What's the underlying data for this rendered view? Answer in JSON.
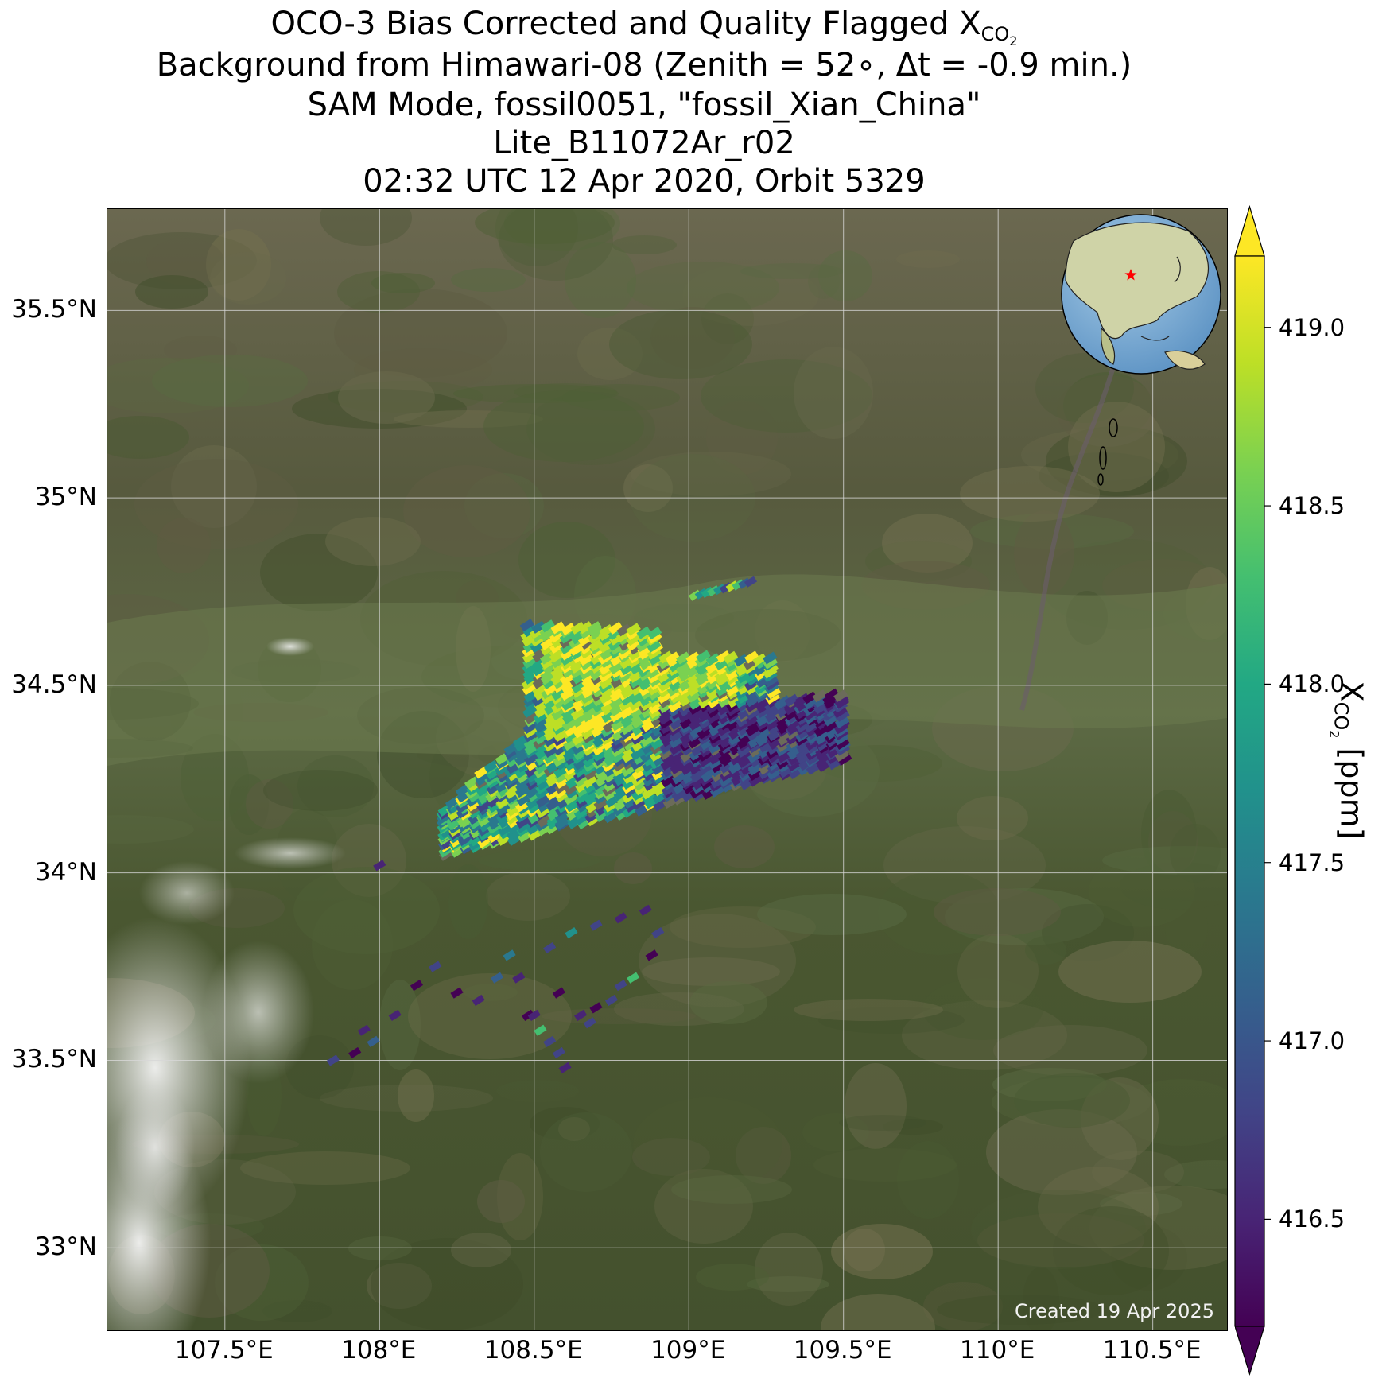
{
  "title": {
    "line1_main": "OCO-3 Bias Corrected and Quality Flagged X",
    "line1_sub": "CO",
    "line1_subsub": "2",
    "line2": "Background from Himawari-08 (Zenith = 52∘, Δt = -0.9 min.)",
    "line3": "SAM Mode, fossil0051, \"fossil_Xian_China\"",
    "line4": "Lite_B11072Ar_r02",
    "line5": "02:32 UTC 12 Apr 2020, Orbit 5329"
  },
  "map": {
    "lon_range": [
      107.12,
      110.74
    ],
    "lat_range": [
      32.78,
      35.77
    ],
    "x_ticks": [
      {
        "value": 107.5,
        "label": "107.5°E"
      },
      {
        "value": 108.0,
        "label": "108°E"
      },
      {
        "value": 108.5,
        "label": "108.5°E"
      },
      {
        "value": 109.0,
        "label": "109°E"
      },
      {
        "value": 109.5,
        "label": "109.5°E"
      },
      {
        "value": 110.0,
        "label": "110°E"
      },
      {
        "value": 110.5,
        "label": "110.5°E"
      }
    ],
    "y_ticks": [
      {
        "value": 33.0,
        "label": "33°N"
      },
      {
        "value": 33.5,
        "label": "33.5°N"
      },
      {
        "value": 34.0,
        "label": "34°N"
      },
      {
        "value": 34.5,
        "label": "34.5°N"
      },
      {
        "value": 35.0,
        "label": "35°N"
      },
      {
        "value": 35.5,
        "label": "35.5°N"
      }
    ],
    "gridlines": true,
    "target_marker": "red-star",
    "inset": "globe-asia",
    "watermark": "Created 19 Apr 2025"
  },
  "colorbar": {
    "colormap": "viridis",
    "range": [
      416.2,
      419.2
    ],
    "ticks": [
      {
        "value": 416.5,
        "label": "416.5"
      },
      {
        "value": 417.0,
        "label": "417.0"
      },
      {
        "value": 417.5,
        "label": "417.5"
      },
      {
        "value": 418.0,
        "label": "418.0"
      },
      {
        "value": 418.5,
        "label": "418.5"
      },
      {
        "value": 419.0,
        "label": "419.0"
      }
    ],
    "label_main": "X",
    "label_sub": "CO",
    "label_subsub": "2",
    "label_unit": " [ppm]",
    "extend": "both"
  },
  "colors": {
    "terrain_base": "#4f5636",
    "viridis_low": "#440154",
    "viridis_high": "#fde725",
    "marker": "#ff0000"
  }
}
